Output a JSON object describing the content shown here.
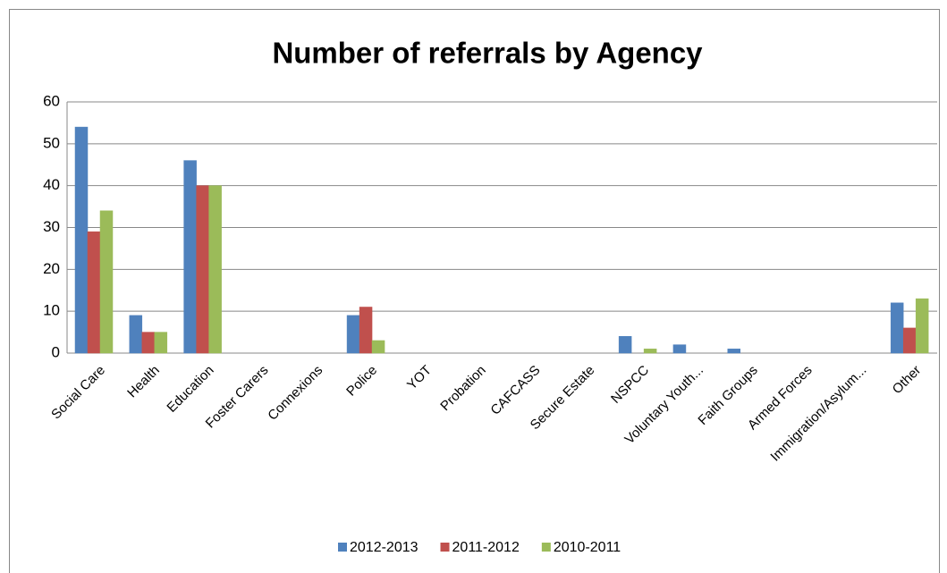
{
  "chart_data": {
    "type": "bar",
    "title": "Number of referrals by Agency",
    "categories": [
      "Social Care",
      "Health",
      "Education",
      "Foster Carers",
      "Connexions",
      "Police",
      "YOT",
      "Probation",
      "CAFCASS",
      "Secure Estate",
      "NSPCC",
      "Voluntary Youth...",
      "Faith Groups",
      "Armed Forces",
      "Immigration/Asylum...",
      "Other"
    ],
    "series": [
      {
        "name": "2012-2013",
        "color": "#4f81bd",
        "values": [
          54,
          9,
          46,
          0,
          0,
          9,
          0,
          0,
          0,
          0,
          4,
          2,
          1,
          0,
          0,
          12
        ]
      },
      {
        "name": "2011-2012",
        "color": "#c0504d",
        "values": [
          29,
          5,
          40,
          0,
          0,
          11,
          0,
          0,
          0,
          0,
          0,
          0,
          0,
          0,
          0,
          6
        ]
      },
      {
        "name": "2010-2011",
        "color": "#9bbb59",
        "values": [
          34,
          5,
          40,
          0,
          0,
          3,
          0,
          0,
          0,
          0,
          1,
          0,
          0,
          0,
          0,
          13
        ]
      }
    ],
    "ylim": [
      0,
      60
    ],
    "yticks": [
      0,
      10,
      20,
      30,
      40,
      50,
      60
    ],
    "grid": true,
    "legend": "bottom"
  }
}
